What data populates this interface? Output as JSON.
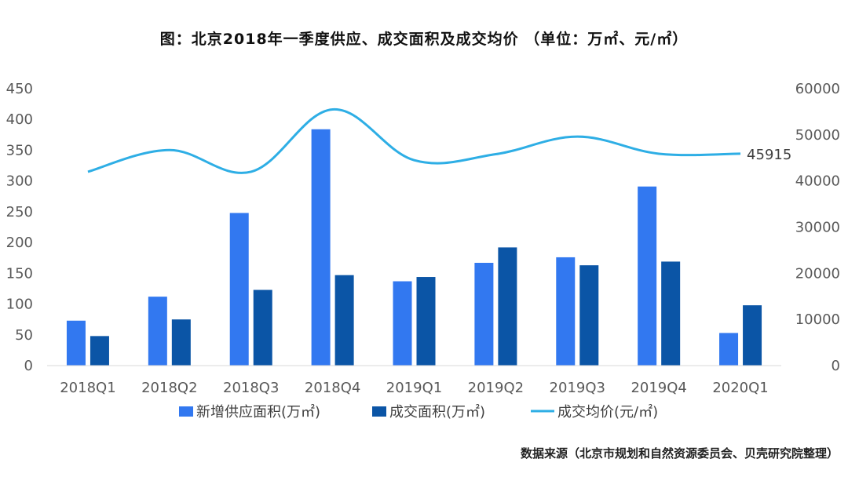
{
  "chart_data": {
    "type": "bar",
    "title": "图：北京2018年一季度供应、成交面积及成交均价 （单位：万㎡、元/㎡）",
    "categories": [
      "2018Q1",
      "2018Q2",
      "2018Q3",
      "2018Q4",
      "2019Q1",
      "2019Q2",
      "2019Q3",
      "2019Q4",
      "2020Q1"
    ],
    "series": [
      {
        "name": "新增供应面积(万㎡)",
        "axis": "left",
        "kind": "bar",
        "color": "#3278F0",
        "values": [
          73,
          112,
          248,
          384,
          137,
          167,
          176,
          291,
          53
        ]
      },
      {
        "name": "成交面积(万㎡)",
        "axis": "left",
        "kind": "bar",
        "color": "#0B55A6",
        "values": [
          48,
          75,
          123,
          147,
          144,
          192,
          163,
          169,
          98
        ]
      },
      {
        "name": "成交均价(元/㎡)",
        "axis": "right",
        "kind": "line",
        "color": "#2EAEE5",
        "values": [
          42000,
          46700,
          42000,
          55500,
          44500,
          45800,
          49600,
          45900,
          45915
        ]
      }
    ],
    "y_left": {
      "min": 0,
      "max": 450,
      "step": 50,
      "ticks": [
        "0",
        "50",
        "100",
        "150",
        "200",
        "250",
        "300",
        "350",
        "400",
        "450"
      ]
    },
    "y_right": {
      "min": 0,
      "max": 60000,
      "step": 10000,
      "ticks": [
        "0",
        "10000",
        "20000",
        "30000",
        "40000",
        "50000",
        "60000"
      ]
    },
    "annotation": {
      "series": 2,
      "index": 8,
      "label": "45915"
    },
    "legend_position": "bottom",
    "grid": false,
    "source": "数据来源（北京市规划和自然资源委员会、贝壳研究院整理）"
  }
}
